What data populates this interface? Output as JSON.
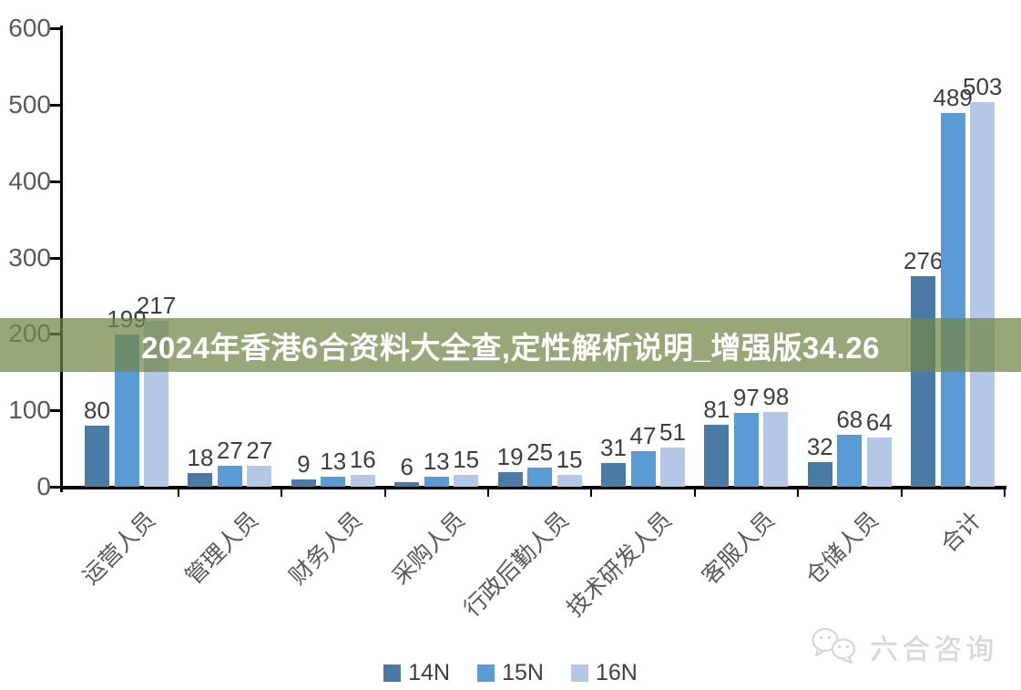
{
  "banner": {
    "text": "2024年香港6合资料大全查,定性解析说明_增强版34.26",
    "overlay_rgba": "rgba(113,134,68,0.73)",
    "text_color": "#ffffff"
  },
  "watermark": {
    "text": "六合咨询",
    "icon": "wechat-chat-bubbles-icon",
    "color": "#d6d6d6"
  },
  "chart_data": {
    "type": "bar",
    "title": "",
    "categories": [
      "运营人员",
      "管理人员",
      "财务人员",
      "采购人员",
      "行政后勤人员",
      "技术研发人员",
      "客服人员",
      "仓储人员",
      "合计"
    ],
    "series": [
      {
        "name": "14N",
        "color": "#4A7BA6",
        "values": [
          80,
          18,
          9,
          6,
          19,
          31,
          81,
          32,
          276
        ]
      },
      {
        "name": "15N",
        "color": "#5B9BD5",
        "values": [
          199,
          27,
          13,
          13,
          25,
          47,
          97,
          68,
          489
        ]
      },
      {
        "name": "16N",
        "color": "#B4C7E7",
        "values": [
          217,
          27,
          16,
          15,
          15,
          51,
          98,
          64,
          503
        ]
      }
    ],
    "ylim": [
      0,
      600
    ],
    "yticks": [
      0,
      100,
      200,
      300,
      400,
      500,
      600
    ],
    "grid": false,
    "legend_position": "bottom",
    "axis_color": "#000000",
    "value_label_color": "#3f3f3f",
    "tick_label_color": "#595959",
    "data_labels": true
  }
}
